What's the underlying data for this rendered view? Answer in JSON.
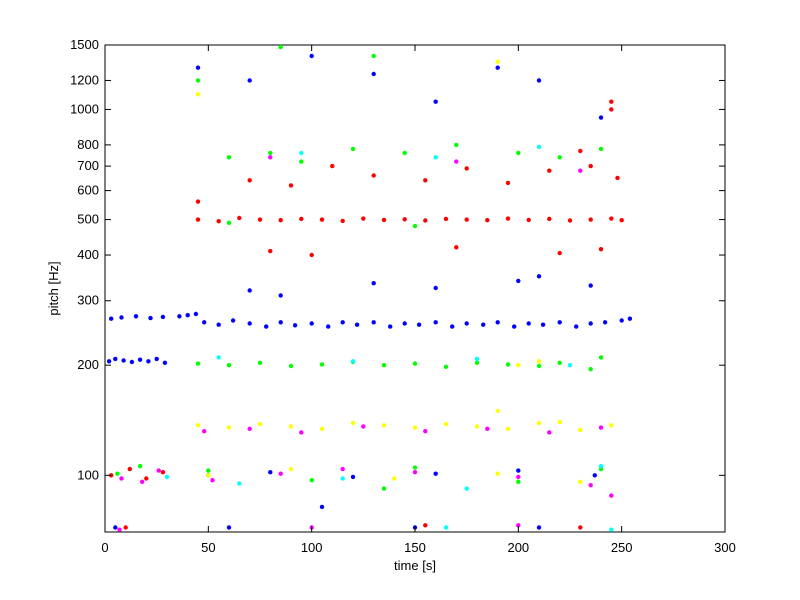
{
  "chart_data": {
    "type": "scatter",
    "title": "",
    "xlabel": "time [s]",
    "ylabel": "pitch [Hz]",
    "xlim": [
      0,
      300
    ],
    "ylim": [
      70,
      1500
    ],
    "y_scale": "log",
    "grid": false,
    "x_ticks": [
      0,
      50,
      100,
      150,
      200,
      250,
      300
    ],
    "y_ticks": [
      100,
      200,
      300,
      400,
      500,
      600,
      700,
      800,
      1000,
      1200,
      1500
    ],
    "x_tick_labels": [
      "0",
      "50",
      "100",
      "150",
      "200",
      "250",
      "300"
    ],
    "y_tick_labels": [
      "100",
      "200",
      "300",
      "400",
      "500",
      "600",
      "700",
      "800",
      "1000",
      "1200",
      "1500"
    ],
    "marker_colors": [
      "#0000ff",
      "#ff0000",
      "#00ff00",
      "#ffff00",
      "#ff00ff",
      "#00ffff"
    ],
    "series": [
      {
        "color": "#0000ff",
        "values": [
          [
            2,
            205
          ],
          [
            5,
            208
          ],
          [
            9,
            206
          ],
          [
            13,
            204
          ],
          [
            17,
            207
          ],
          [
            21,
            205
          ],
          [
            25,
            208
          ],
          [
            29,
            203
          ],
          [
            3,
            268
          ],
          [
            8,
            270
          ],
          [
            15,
            272
          ],
          [
            22,
            269
          ],
          [
            28,
            271
          ],
          [
            36,
            272
          ],
          [
            40,
            274
          ],
          [
            44,
            276
          ],
          [
            48,
            262
          ],
          [
            55,
            258
          ],
          [
            62,
            265
          ],
          [
            70,
            260
          ],
          [
            78,
            255
          ],
          [
            85,
            262
          ],
          [
            92,
            257
          ],
          [
            100,
            260
          ],
          [
            108,
            255
          ],
          [
            115,
            262
          ],
          [
            122,
            258
          ],
          [
            130,
            262
          ],
          [
            138,
            255
          ],
          [
            145,
            260
          ],
          [
            152,
            258
          ],
          [
            160,
            262
          ],
          [
            168,
            255
          ],
          [
            175,
            260
          ],
          [
            183,
            258
          ],
          [
            190,
            262
          ],
          [
            198,
            255
          ],
          [
            205,
            260
          ],
          [
            212,
            258
          ],
          [
            220,
            262
          ],
          [
            228,
            255
          ],
          [
            235,
            260
          ],
          [
            242,
            262
          ],
          [
            250,
            265
          ],
          [
            254,
            268
          ],
          [
            70,
            320
          ],
          [
            85,
            310
          ],
          [
            130,
            335
          ],
          [
            160,
            325
          ],
          [
            200,
            340
          ],
          [
            210,
            350
          ],
          [
            235,
            330
          ],
          [
            45,
            1300
          ],
          [
            70,
            1200
          ],
          [
            100,
            1400
          ],
          [
            130,
            1250
          ],
          [
            160,
            1050
          ],
          [
            190,
            1300
          ],
          [
            210,
            1200
          ],
          [
            240,
            950
          ],
          [
            50,
            100
          ],
          [
            80,
            102
          ],
          [
            120,
            99
          ],
          [
            160,
            101
          ],
          [
            200,
            103
          ],
          [
            237,
            100
          ],
          [
            105,
            82
          ],
          [
            5,
            72
          ],
          [
            60,
            72
          ],
          [
            150,
            72
          ],
          [
            210,
            72
          ]
        ]
      },
      {
        "color": "#ff0000",
        "values": [
          [
            45,
            500
          ],
          [
            55,
            495
          ],
          [
            65,
            505
          ],
          [
            75,
            500
          ],
          [
            85,
            498
          ],
          [
            95,
            502
          ],
          [
            105,
            500
          ],
          [
            115,
            496
          ],
          [
            125,
            503
          ],
          [
            135,
            499
          ],
          [
            145,
            501
          ],
          [
            155,
            497
          ],
          [
            165,
            502
          ],
          [
            175,
            500
          ],
          [
            185,
            498
          ],
          [
            195,
            503
          ],
          [
            205,
            499
          ],
          [
            215,
            502
          ],
          [
            225,
            497
          ],
          [
            235,
            500
          ],
          [
            245,
            503
          ],
          [
            250,
            498
          ],
          [
            45,
            560
          ],
          [
            70,
            640
          ],
          [
            90,
            620
          ],
          [
            110,
            700
          ],
          [
            130,
            660
          ],
          [
            155,
            640
          ],
          [
            175,
            690
          ],
          [
            195,
            630
          ],
          [
            215,
            680
          ],
          [
            235,
            700
          ],
          [
            248,
            650
          ],
          [
            80,
            410
          ],
          [
            100,
            400
          ],
          [
            170,
            420
          ],
          [
            220,
            405
          ],
          [
            240,
            415
          ],
          [
            245,
            1000
          ],
          [
            245,
            1050
          ],
          [
            230,
            770
          ],
          [
            3,
            100
          ],
          [
            12,
            104
          ],
          [
            20,
            98
          ],
          [
            28,
            102
          ],
          [
            10,
            72
          ],
          [
            155,
            73
          ],
          [
            230,
            72
          ]
        ]
      },
      {
        "color": "#00ff00",
        "values": [
          [
            45,
            202
          ],
          [
            60,
            200
          ],
          [
            75,
            203
          ],
          [
            90,
            199
          ],
          [
            105,
            201
          ],
          [
            120,
            204
          ],
          [
            135,
            200
          ],
          [
            150,
            202
          ],
          [
            165,
            198
          ],
          [
            180,
            203
          ],
          [
            195,
            201
          ],
          [
            210,
            199
          ],
          [
            220,
            203
          ],
          [
            235,
            195
          ],
          [
            240,
            210
          ],
          [
            60,
            740
          ],
          [
            80,
            760
          ],
          [
            95,
            720
          ],
          [
            120,
            780
          ],
          [
            145,
            760
          ],
          [
            170,
            800
          ],
          [
            200,
            760
          ],
          [
            220,
            740
          ],
          [
            240,
            780
          ],
          [
            45,
            1200
          ],
          [
            85,
            1480
          ],
          [
            130,
            1400
          ],
          [
            60,
            490
          ],
          [
            150,
            480
          ],
          [
            6,
            101
          ],
          [
            17,
            106
          ],
          [
            50,
            103
          ],
          [
            100,
            97
          ],
          [
            150,
            105
          ],
          [
            200,
            96
          ],
          [
            240,
            104
          ],
          [
            135,
            92
          ]
        ]
      },
      {
        "color": "#ffff00",
        "values": [
          [
            45,
            137
          ],
          [
            60,
            135
          ],
          [
            75,
            138
          ],
          [
            90,
            136
          ],
          [
            105,
            134
          ],
          [
            120,
            139
          ],
          [
            135,
            137
          ],
          [
            150,
            135
          ],
          [
            165,
            138
          ],
          [
            180,
            136
          ],
          [
            195,
            134
          ],
          [
            210,
            139
          ],
          [
            220,
            140
          ],
          [
            230,
            133
          ],
          [
            245,
            137
          ],
          [
            200,
            200
          ],
          [
            210,
            205
          ],
          [
            190,
            150
          ],
          [
            50,
            100
          ],
          [
            90,
            104
          ],
          [
            140,
            98
          ],
          [
            190,
            101
          ],
          [
            230,
            96
          ],
          [
            45,
            1100
          ],
          [
            190,
            1350
          ]
        ]
      },
      {
        "color": "#ff00ff",
        "values": [
          [
            48,
            132
          ],
          [
            70,
            134
          ],
          [
            95,
            131
          ],
          [
            125,
            136
          ],
          [
            155,
            132
          ],
          [
            185,
            134
          ],
          [
            215,
            131
          ],
          [
            240,
            135
          ],
          [
            8,
            98
          ],
          [
            18,
            96
          ],
          [
            26,
            103
          ],
          [
            52,
            97
          ],
          [
            85,
            101
          ],
          [
            115,
            104
          ],
          [
            150,
            102
          ],
          [
            200,
            99
          ],
          [
            235,
            94
          ],
          [
            245,
            88
          ],
          [
            7,
            71
          ],
          [
            100,
            72
          ],
          [
            200,
            73
          ],
          [
            80,
            740
          ],
          [
            170,
            720
          ],
          [
            230,
            680
          ]
        ]
      },
      {
        "color": "#00ffff",
        "values": [
          [
            55,
            210
          ],
          [
            120,
            205
          ],
          [
            180,
            208
          ],
          [
            225,
            200
          ],
          [
            65,
            95
          ],
          [
            115,
            98
          ],
          [
            175,
            92
          ],
          [
            240,
            106
          ],
          [
            95,
            760
          ],
          [
            160,
            740
          ],
          [
            210,
            790
          ],
          [
            30,
            99
          ],
          [
            165,
            72
          ],
          [
            245,
            71
          ]
        ]
      }
    ]
  }
}
